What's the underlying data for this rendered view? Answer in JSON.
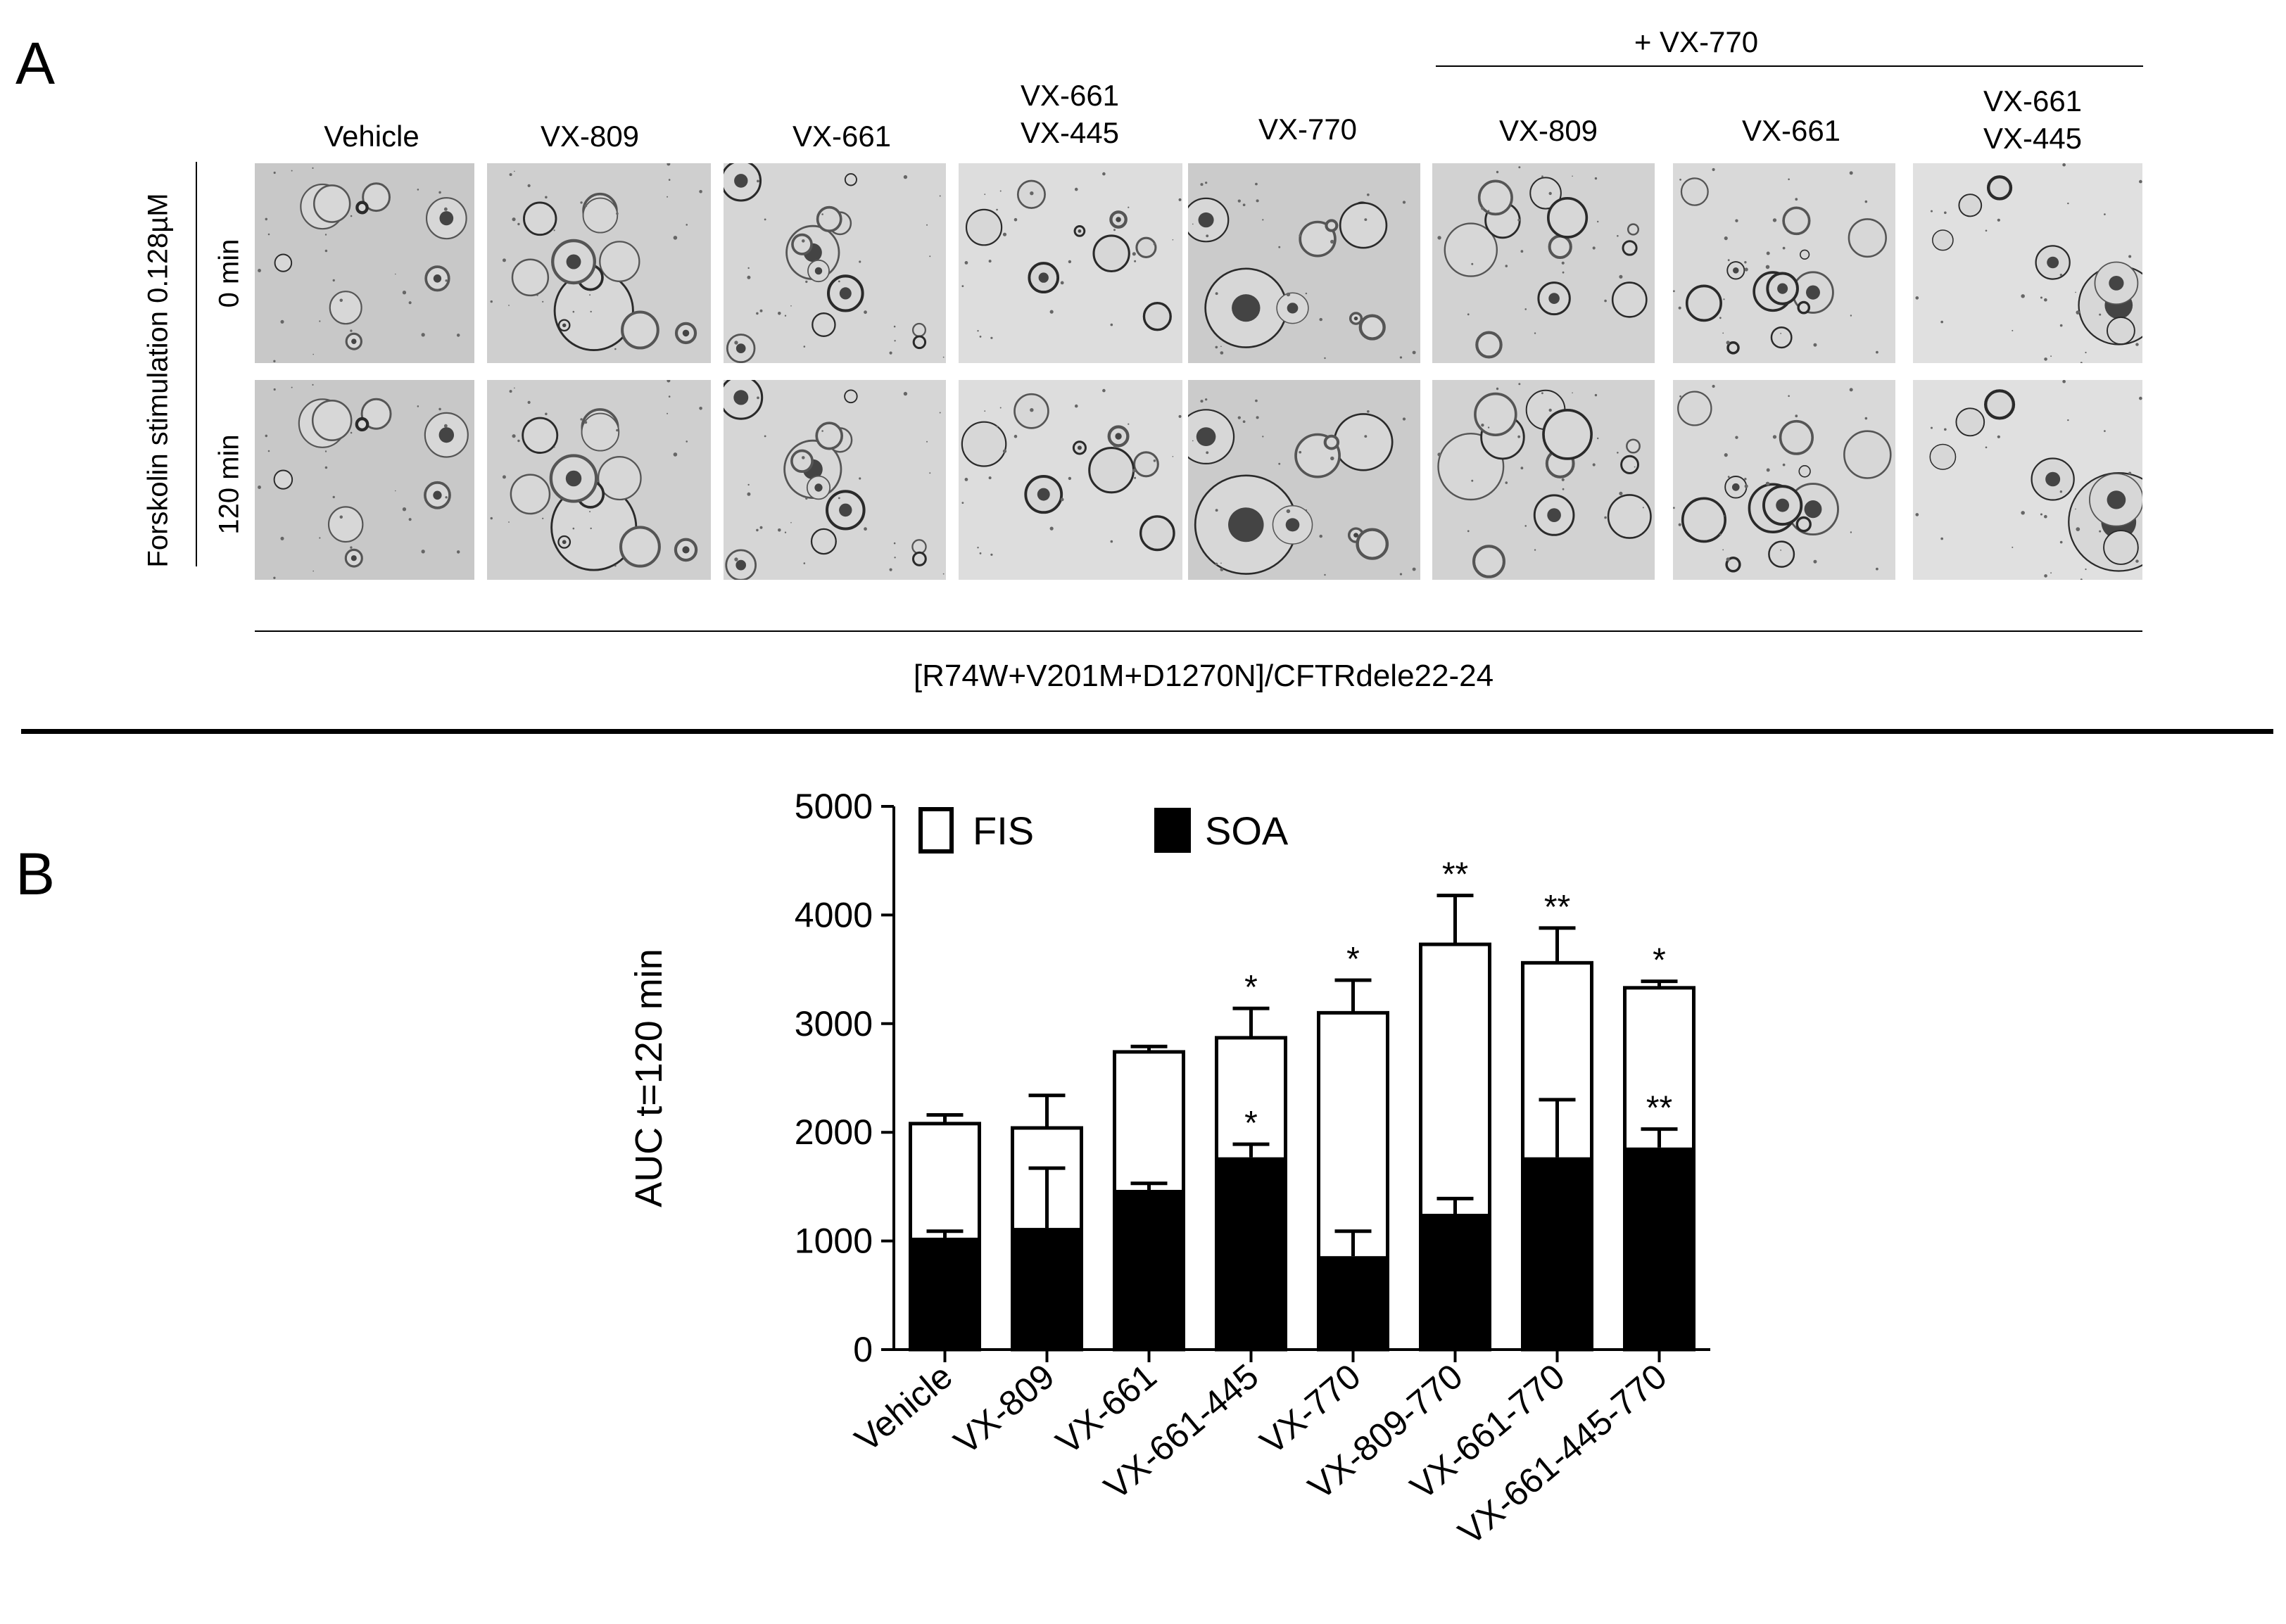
{
  "panel_a": {
    "letter": "A",
    "bracket_label": "+ VX-770",
    "column_labels": [
      [
        "Vehicle"
      ],
      [
        "VX-809"
      ],
      [
        "VX-661"
      ],
      [
        "VX-661",
        "VX-445"
      ],
      [
        "VX-770"
      ],
      [
        "VX-809"
      ],
      [
        "VX-661"
      ],
      [
        "VX-661",
        "VX-445"
      ]
    ],
    "row_group_label": "Forskolin stimulation 0.128µM",
    "row_labels": [
      "0 min",
      "120 min"
    ],
    "genotype_caption": "[R74W+V201M+D1270N]/CFTRdele22-24"
  },
  "panel_b": {
    "letter": "B"
  },
  "chart_data": {
    "type": "bar",
    "stacked": true,
    "categories": [
      "Vehicle",
      "VX-809",
      "VX-661",
      "VX-661-445",
      "VX-770",
      "VX-809-770",
      "VX-661-770",
      "VX-661-445-770"
    ],
    "series": [
      {
        "name": "SOA",
        "fill": "#000000",
        "values": [
          1030,
          1120,
          1470,
          1770,
          860,
          1250,
          1770,
          1860
        ],
        "errors": [
          60,
          550,
          60,
          120,
          230,
          140,
          530,
          170
        ],
        "significance": [
          "",
          "",
          "",
          "*",
          "",
          "",
          "",
          "**"
        ]
      },
      {
        "name": "FIS",
        "fill": "#ffffff",
        "totals": [
          2080,
          2040,
          2740,
          2870,
          3100,
          3730,
          3560,
          3330
        ],
        "errors": [
          80,
          300,
          50,
          270,
          300,
          450,
          320,
          60
        ],
        "significance": [
          "",
          "",
          "",
          "*",
          "*",
          "**",
          "**",
          "*"
        ]
      }
    ],
    "ylabel": "AUC  t=120 min",
    "ylim": [
      0,
      5000
    ],
    "yticks": [
      "0",
      "1000",
      "2000",
      "3000",
      "4000",
      "5000"
    ],
    "legend_placement": "top-left"
  }
}
